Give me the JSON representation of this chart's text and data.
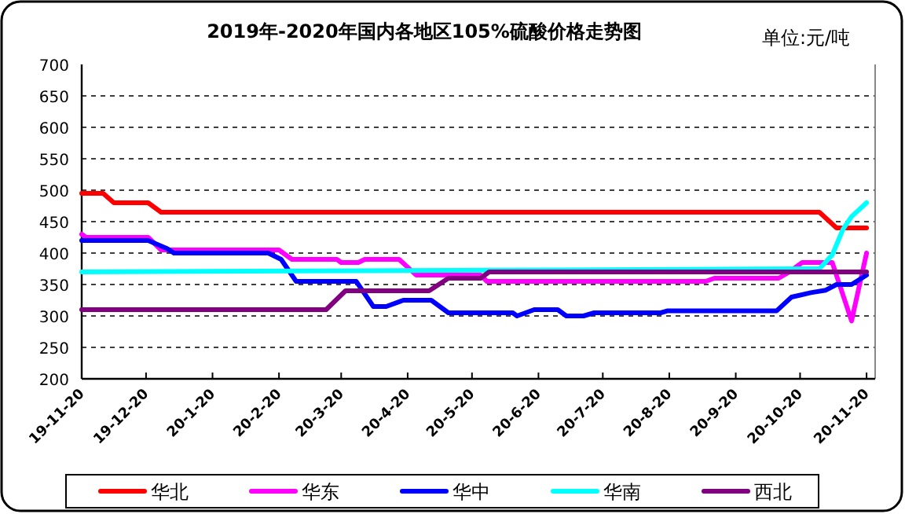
{
  "chart_data": {
    "type": "line",
    "title": "2019年-2020年国内各地区105%硫酸价格走势图",
    "annotations": [
      "单位:元/吨"
    ],
    "xlim": [
      "2019-11-20",
      "2020-11-24"
    ],
    "xticks": [
      {
        "value": "2019-11-20",
        "label": "19-11-20"
      },
      {
        "value": "2019-12-20",
        "label": "19-12-20"
      },
      {
        "value": "2020-01-20",
        "label": "20-1-20"
      },
      {
        "value": "2020-02-20",
        "label": "20-2-20"
      },
      {
        "value": "2020-03-20",
        "label": "20-3-20"
      },
      {
        "value": "2020-04-20",
        "label": "20-4-20"
      },
      {
        "value": "2020-05-20",
        "label": "20-5-20"
      },
      {
        "value": "2020-06-20",
        "label": "20-6-20"
      },
      {
        "value": "2020-07-20",
        "label": "20-7-20"
      },
      {
        "value": "2020-08-20",
        "label": "20-8-20"
      },
      {
        "value": "2020-09-20",
        "label": "20-9-20"
      },
      {
        "value": "2020-10-20",
        "label": "20-10-20"
      },
      {
        "value": "2020-11-20",
        "label": "20-11-20"
      }
    ],
    "ylim": [
      200,
      700
    ],
    "yticks": [
      200,
      250,
      300,
      350,
      400,
      450,
      500,
      550,
      600,
      650,
      700
    ],
    "grid": "y",
    "legend": "bottom",
    "series": [
      {
        "name": "华北",
        "color": "#ff0000",
        "x": [
          "2019-11-20",
          "2019-11-30",
          "2019-12-05",
          "2019-12-21",
          "2019-12-27",
          "2020-10-29",
          "2020-11-06",
          "2020-11-20"
        ],
        "values": [
          495,
          495,
          480,
          480,
          465,
          465,
          440,
          440
        ]
      },
      {
        "name": "华东",
        "color": "#ff00ff",
        "x": [
          "2019-11-20",
          "2019-11-22",
          "2019-12-21",
          "2019-12-27",
          "2020-02-20",
          "2020-02-26",
          "2020-03-18",
          "2020-03-20",
          "2020-03-28",
          "2020-03-31",
          "2020-04-16",
          "2020-04-24",
          "2020-05-24",
          "2020-05-27",
          "2020-09-06",
          "2020-09-10",
          "2020-10-10",
          "2020-10-15",
          "2020-10-21",
          "2020-11-04",
          "2020-11-13",
          "2020-11-20"
        ],
        "values": [
          430,
          425,
          425,
          405,
          405,
          390,
          390,
          385,
          385,
          390,
          390,
          365,
          365,
          355,
          355,
          360,
          360,
          370,
          385,
          385,
          292,
          400
        ]
      },
      {
        "name": "华中",
        "color": "#0000ff",
        "x": [
          "2019-11-20",
          "2019-12-21",
          "2019-12-30",
          "2020-01-02",
          "2020-02-15",
          "2020-02-21",
          "2020-02-28",
          "2020-03-27",
          "2020-04-04",
          "2020-04-10",
          "2020-04-18",
          "2020-05-01",
          "2020-05-09",
          "2020-06-08",
          "2020-06-10",
          "2020-06-18",
          "2020-06-29",
          "2020-07-03",
          "2020-07-11",
          "2020-07-16",
          "2020-08-16",
          "2020-08-19",
          "2020-10-09",
          "2020-10-16",
          "2020-10-25",
          "2020-11-01",
          "2020-11-06",
          "2020-11-13",
          "2020-11-20"
        ],
        "values": [
          420,
          420,
          407,
          400,
          400,
          390,
          355,
          355,
          315,
          315,
          325,
          325,
          305,
          305,
          300,
          310,
          310,
          300,
          300,
          305,
          305,
          308,
          308,
          330,
          337,
          341,
          350,
          350,
          365
        ]
      },
      {
        "name": "华南",
        "color": "#00ffff",
        "x": [
          "2019-11-20",
          "2020-10-29",
          "2020-11-04",
          "2020-11-09",
          "2020-11-13",
          "2020-11-20"
        ],
        "values": [
          370,
          375,
          397,
          438,
          458,
          480
        ]
      },
      {
        "name": "西北",
        "color": "#800080",
        "x": [
          "2019-11-20",
          "2020-03-13",
          "2020-03-22",
          "2020-04-30",
          "2020-05-09",
          "2020-05-24",
          "2020-05-28",
          "2020-11-20"
        ],
        "values": [
          310,
          310,
          340,
          340,
          360,
          360,
          370,
          370
        ]
      }
    ]
  }
}
